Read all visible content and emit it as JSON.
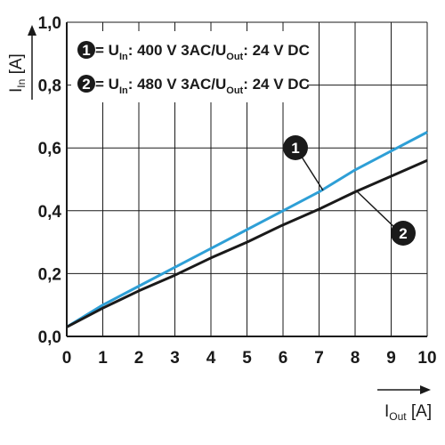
{
  "chart_data": {
    "type": "line",
    "xlabel": {
      "main": "I",
      "sub": "Out",
      "unit": " [A]"
    },
    "ylabel": {
      "main": "I",
      "sub": "In",
      "unit": " [A]"
    },
    "xlim": [
      0,
      10
    ],
    "ylim": [
      0,
      1.0
    ],
    "x_ticks": [
      0,
      1,
      2,
      3,
      4,
      5,
      6,
      7,
      8,
      9,
      10
    ],
    "x_tick_labels": [
      "0",
      "1",
      "2",
      "3",
      "4",
      "5",
      "6",
      "7",
      "8",
      "9",
      "10"
    ],
    "y_ticks": [
      0,
      0.2,
      0.4,
      0.6,
      0.8,
      1.0
    ],
    "y_tick_labels": [
      "0,0",
      "0,2",
      "0,4",
      "0,6",
      "0,8",
      "1,0"
    ],
    "grid": true,
    "legend_position": "top-left",
    "series": [
      {
        "marker": "1",
        "legend": {
          "pre": " = U",
          "sub1": "In",
          "mid": ": 400 V 3AC/U",
          "sub2": "Out",
          "post": ": 24 V DC"
        },
        "color": "#2e9fd6",
        "x": [
          0,
          1,
          2,
          3,
          4,
          5,
          6,
          7,
          8,
          9,
          10
        ],
        "y": [
          0.03,
          0.1,
          0.16,
          0.22,
          0.28,
          0.34,
          0.4,
          0.46,
          0.53,
          0.59,
          0.65
        ]
      },
      {
        "marker": "2",
        "legend": {
          "pre": " = U",
          "sub1": "In",
          "mid": ": 480 V 3AC/U",
          "sub2": "Out",
          "post": ": 24 V DC"
        },
        "color": "#1a1a1a",
        "x": [
          0,
          1,
          2,
          3,
          4,
          5,
          6,
          7,
          8,
          9,
          10
        ],
        "y": [
          0.03,
          0.09,
          0.145,
          0.195,
          0.25,
          0.3,
          0.355,
          0.405,
          0.46,
          0.51,
          0.56
        ]
      }
    ]
  }
}
